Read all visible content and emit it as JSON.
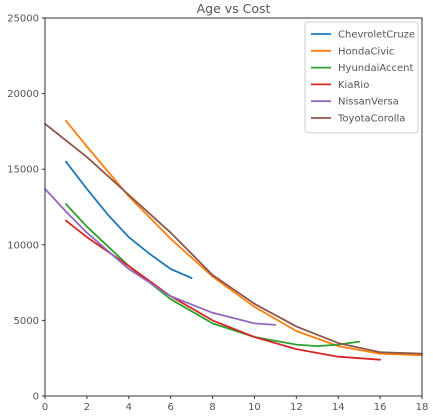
{
  "chart_data": {
    "type": "line",
    "title": "Age vs Cost",
    "xlabel": "",
    "ylabel": "",
    "xlim": [
      0,
      18
    ],
    "ylim": [
      0,
      25000
    ],
    "xticks": [
      0,
      2,
      4,
      6,
      8,
      10,
      12,
      14,
      16,
      18
    ],
    "yticks": [
      0,
      5000,
      10000,
      15000,
      20000,
      25000
    ],
    "grid": false,
    "legend_position": "top-right",
    "series": [
      {
        "name": "ChevroletCruze",
        "color": "#1f77b4",
        "points": [
          [
            1,
            15500
          ],
          [
            2,
            13700
          ],
          [
            3,
            12000
          ],
          [
            4,
            10500
          ],
          [
            5,
            9400
          ],
          [
            6,
            8400
          ],
          [
            7,
            7800
          ]
        ]
      },
      {
        "name": "HondaCivic",
        "color": "#ff7f0e",
        "points": [
          [
            1,
            18200
          ],
          [
            2,
            16500
          ],
          [
            4,
            13200
          ],
          [
            6,
            10400
          ],
          [
            8,
            7900
          ],
          [
            10,
            5900
          ],
          [
            12,
            4300
          ],
          [
            14,
            3300
          ],
          [
            16,
            2800
          ],
          [
            18,
            2700
          ]
        ]
      },
      {
        "name": "HyundaiAccent",
        "color": "#2ca02c",
        "points": [
          [
            1,
            12700
          ],
          [
            2,
            11200
          ],
          [
            4,
            8600
          ],
          [
            6,
            6400
          ],
          [
            8,
            4800
          ],
          [
            10,
            3900
          ],
          [
            12,
            3400
          ],
          [
            13,
            3300
          ],
          [
            14,
            3400
          ],
          [
            15,
            3600
          ]
        ]
      },
      {
        "name": "KiaRio",
        "color": "#d62728",
        "points": [
          [
            1,
            11600
          ],
          [
            2,
            10500
          ],
          [
            4,
            8600
          ],
          [
            6,
            6600
          ],
          [
            8,
            5000
          ],
          [
            10,
            3900
          ],
          [
            12,
            3100
          ],
          [
            14,
            2600
          ],
          [
            16,
            2400
          ]
        ]
      },
      {
        "name": "NissanVersa",
        "color": "#9467bd",
        "points": [
          [
            0,
            13700
          ],
          [
            1,
            12200
          ],
          [
            2,
            10800
          ],
          [
            4,
            8400
          ],
          [
            6,
            6600
          ],
          [
            8,
            5500
          ],
          [
            10,
            4800
          ],
          [
            11,
            4700
          ]
        ]
      },
      {
        "name": "ToyotaCorolla",
        "color": "#8c564b",
        "points": [
          [
            0,
            18000
          ],
          [
            2,
            15800
          ],
          [
            4,
            13300
          ],
          [
            6,
            10800
          ],
          [
            8,
            8000
          ],
          [
            10,
            6100
          ],
          [
            12,
            4600
          ],
          [
            14,
            3500
          ],
          [
            16,
            2900
          ],
          [
            18,
            2800
          ]
        ]
      }
    ]
  }
}
